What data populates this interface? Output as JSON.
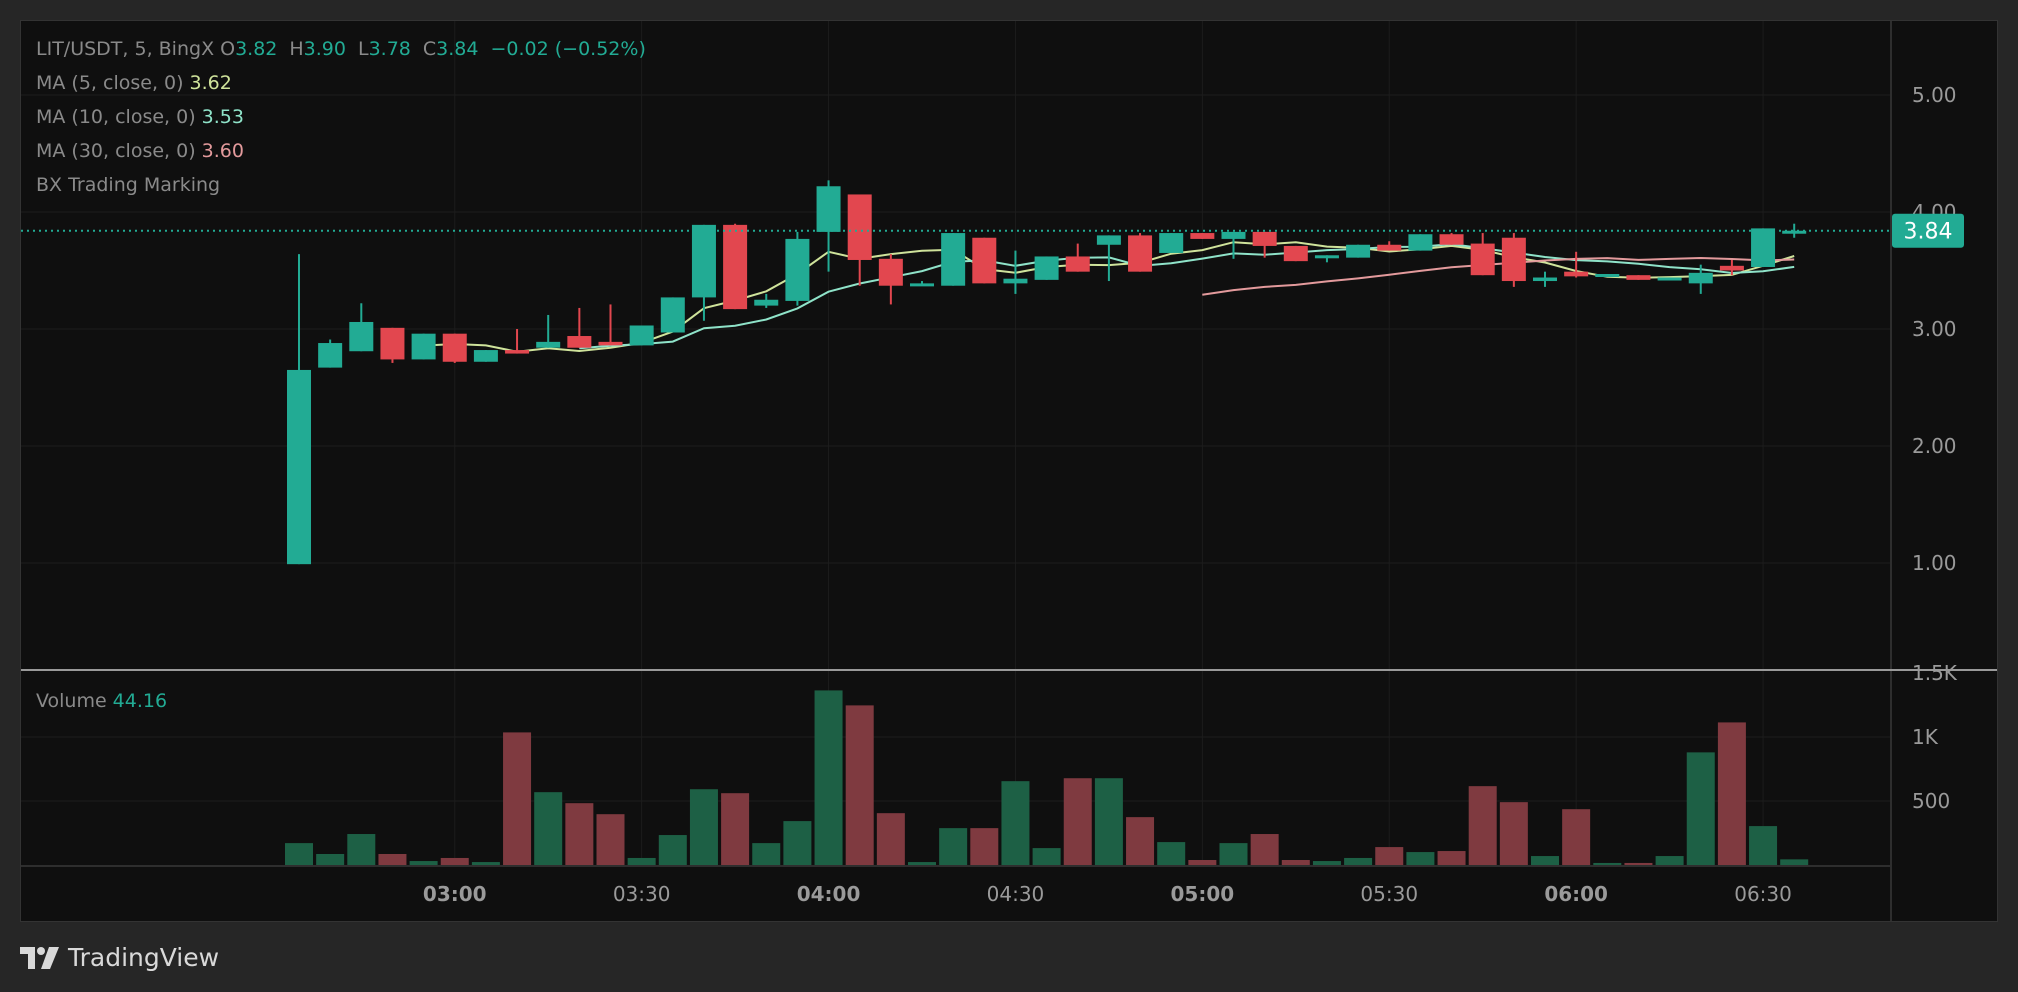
{
  "legend": {
    "symbol": "LIT/USDT, 5, BingX",
    "open_label": "O",
    "open": "3.82",
    "high_label": "H",
    "high": "3.90",
    "low_label": "L",
    "low": "3.78",
    "close_label": "C",
    "close": "3.84",
    "change": "−0.02 (−0.52%)",
    "ma5_label": "MA (5, close, 0)",
    "ma5_value": "3.62",
    "ma10_label": "MA (10, close, 0)",
    "ma10_value": "3.53",
    "ma30_label": "MA (30, close, 0)",
    "ma30_value": "3.60",
    "marking_label": "BX Trading Marking",
    "volume_label": "Volume",
    "volume_value": "44.16"
  },
  "branding": {
    "name": "TradingView"
  },
  "colors": {
    "up": "#22ab94",
    "down": "#e2474f",
    "vol_up": "#1d6045",
    "vol_down": "#7f3a40",
    "ma5": "#cfe39b",
    "ma10": "#8fe3c9",
    "ma30": "#e39a9c"
  },
  "chart_data": {
    "type": "candlestick",
    "interval_minutes": 5,
    "time_ticks": [
      "03:00",
      "03:30",
      "04:00",
      "04:30",
      "05:00",
      "05:30",
      "06:00",
      "06:30"
    ],
    "bold_time_ticks": [
      "03:00",
      "04:00",
      "05:00",
      "06:00"
    ],
    "price_ticks": [
      "5.00",
      "4.00",
      "3.00",
      "2.00",
      "1.00"
    ],
    "price_range": [
      0.6,
      5.65
    ],
    "last_price": "3.84",
    "volume_ticks": [
      "1.5K",
      "1K",
      "500"
    ],
    "volume_range": [
      0,
      1500
    ],
    "grid": true,
    "ma_periods": [
      5,
      10,
      30
    ],
    "first_bar_time": "02:35",
    "ohlc": [
      [
        0.99,
        3.64,
        0.99,
        2.65
      ],
      [
        2.67,
        2.91,
        2.67,
        2.88
      ],
      [
        2.81,
        3.22,
        2.81,
        3.06
      ],
      [
        3.01,
        3.01,
        2.71,
        2.74
      ],
      [
        2.74,
        2.96,
        2.74,
        2.96
      ],
      [
        2.96,
        2.96,
        2.71,
        2.72
      ],
      [
        2.72,
        2.82,
        2.72,
        2.82
      ],
      [
        2.82,
        3.0,
        2.79,
        2.79
      ],
      [
        2.84,
        3.12,
        2.84,
        2.89
      ],
      [
        2.94,
        3.18,
        2.84,
        2.84
      ],
      [
        2.89,
        3.21,
        2.86,
        2.86
      ],
      [
        2.86,
        3.03,
        2.86,
        3.03
      ],
      [
        2.97,
        3.27,
        2.97,
        3.27
      ],
      [
        3.27,
        3.89,
        3.07,
        3.89
      ],
      [
        3.89,
        3.9,
        3.17,
        3.17
      ],
      [
        3.2,
        3.3,
        3.18,
        3.25
      ],
      [
        3.24,
        3.83,
        3.2,
        3.77
      ],
      [
        3.83,
        4.27,
        3.49,
        4.22
      ],
      [
        4.15,
        4.15,
        3.37,
        3.59
      ],
      [
        3.6,
        3.64,
        3.21,
        3.37
      ],
      [
        3.37,
        3.41,
        3.37,
        3.39
      ],
      [
        3.37,
        3.82,
        3.37,
        3.82
      ],
      [
        3.78,
        3.78,
        3.39,
        3.39
      ],
      [
        3.39,
        3.67,
        3.3,
        3.43
      ],
      [
        3.42,
        3.62,
        3.42,
        3.62
      ],
      [
        3.62,
        3.73,
        3.49,
        3.49
      ],
      [
        3.72,
        3.8,
        3.41,
        3.8
      ],
      [
        3.8,
        3.82,
        3.49,
        3.49
      ],
      [
        3.65,
        3.82,
        3.65,
        3.82
      ],
      [
        3.82,
        3.82,
        3.77,
        3.77
      ],
      [
        3.77,
        3.83,
        3.6,
        3.83
      ],
      [
        3.83,
        3.83,
        3.61,
        3.71
      ],
      [
        3.71,
        3.71,
        3.58,
        3.58
      ],
      [
        3.61,
        3.63,
        3.57,
        3.63
      ],
      [
        3.61,
        3.72,
        3.61,
        3.72
      ],
      [
        3.72,
        3.75,
        3.67,
        3.67
      ],
      [
        3.67,
        3.81,
        3.67,
        3.81
      ],
      [
        3.81,
        3.82,
        3.72,
        3.72
      ],
      [
        3.73,
        3.82,
        3.46,
        3.46
      ],
      [
        3.78,
        3.82,
        3.36,
        3.41
      ],
      [
        3.41,
        3.49,
        3.36,
        3.44
      ],
      [
        3.49,
        3.66,
        3.44,
        3.45
      ],
      [
        3.45,
        3.47,
        3.45,
        3.47
      ],
      [
        3.46,
        3.46,
        3.42,
        3.42
      ],
      [
        3.42,
        3.44,
        3.42,
        3.44
      ],
      [
        3.39,
        3.55,
        3.3,
        3.48
      ],
      [
        3.54,
        3.59,
        3.46,
        3.5
      ],
      [
        3.53,
        3.86,
        3.53,
        3.86
      ],
      [
        3.82,
        3.9,
        3.78,
        3.84
      ]
    ],
    "volume": [
      171,
      86,
      242,
      86,
      31,
      55,
      23,
      1036,
      569,
      483,
      397,
      55,
      234,
      592,
      561,
      171,
      343,
      1364,
      1247,
      405,
      23,
      288,
      288,
      655,
      132,
      678,
      678,
      374,
      179,
      39,
      171,
      242,
      39,
      31,
      55,
      140,
      101,
      109,
      616,
      491,
      70,
      436,
      16,
      16,
      70,
      880,
      1114,
      304,
      44.16
    ]
  }
}
